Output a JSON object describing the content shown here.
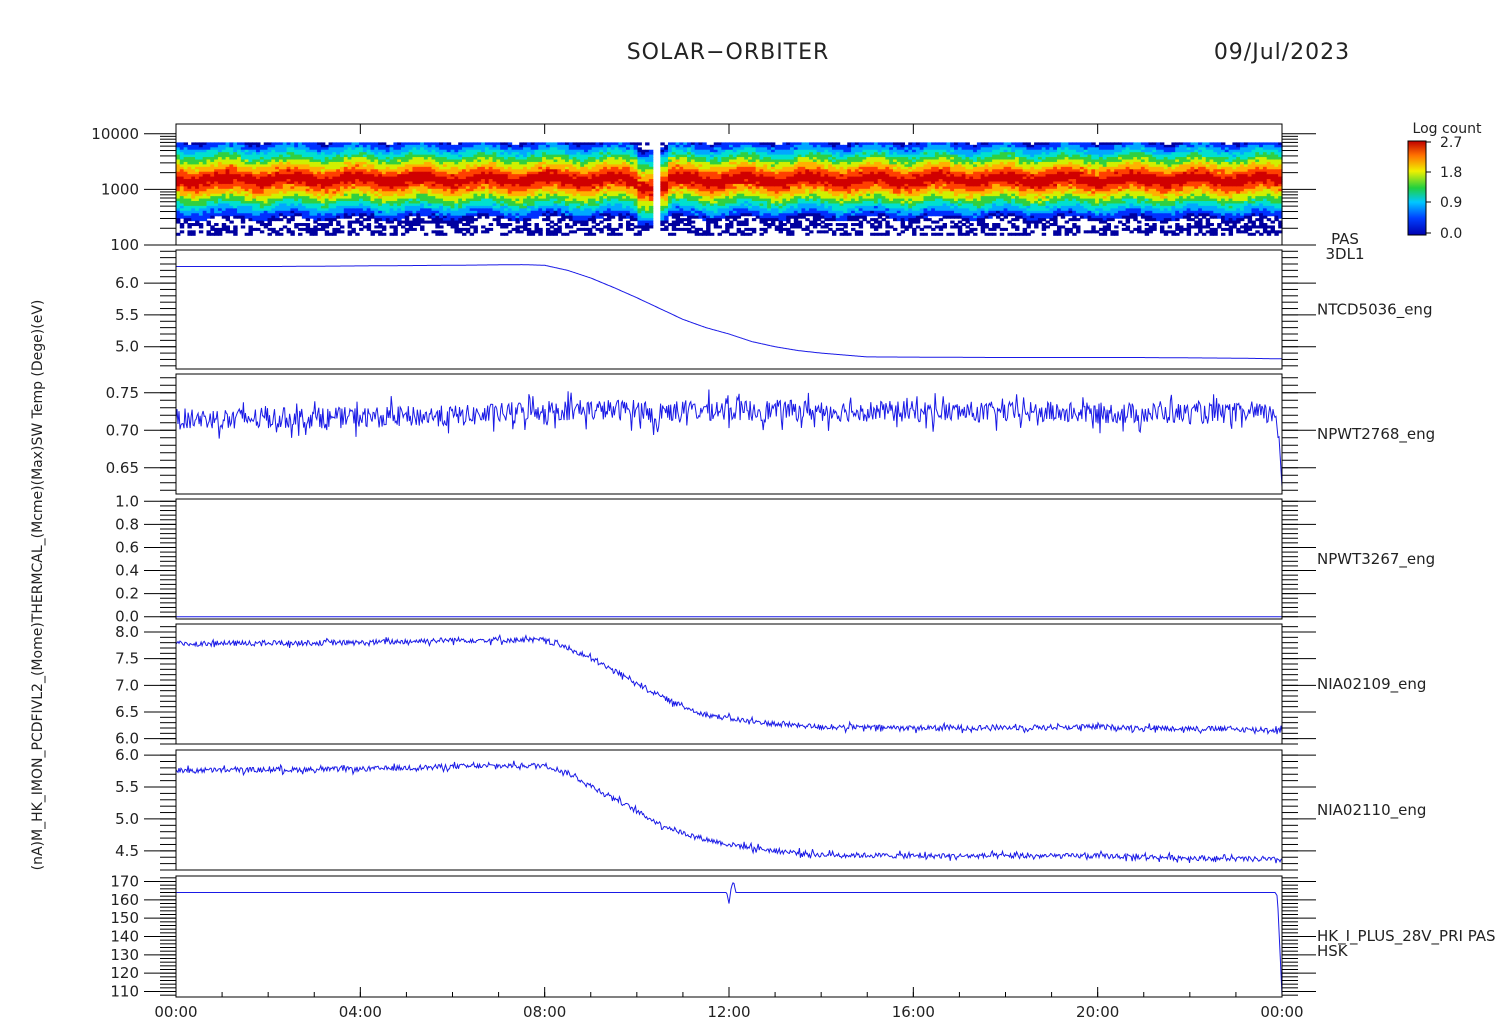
{
  "header": {
    "mission": "SOLAR−ORBITER",
    "date": "09/Jul/2023"
  },
  "y_axis_title": "(nA)M_HK_IMON_PCDFIVL2_(Mome)THERMCAL_(Mcme)(Max)SW Temp (Dege)(eV)",
  "colorbar": {
    "title": "Log count",
    "ticks": [
      "2.7",
      "1.8",
      "0.9",
      "0.0"
    ]
  },
  "colors": {
    "trace": "#1a1ae6",
    "panel_label": "#2a3aa8",
    "frame": "#000000"
  },
  "chart_data": [
    {
      "type": "heatmap",
      "panel_label": [
        "PAS",
        "3DL1"
      ],
      "x_start": "00:00",
      "x_end": "00:00",
      "x_tick_labels": [
        "00:00",
        "04:00",
        "08:00",
        "12:00",
        "16:00",
        "20:00",
        "00:00"
      ],
      "y_scale": "log",
      "ylim": [
        100,
        15000
      ],
      "y_tick_labels": [
        "10000",
        "1000",
        "100"
      ],
      "y_tick_values": [
        10000,
        1000,
        100
      ],
      "colorbar_range": [
        0.0,
        2.7
      ],
      "peak_energy_ev": 700,
      "gap_hours": [
        10.33,
        10.45
      ]
    },
    {
      "type": "line",
      "label": "NTCD5036_eng",
      "ylim": [
        4.65,
        6.52
      ],
      "y_tick_values": [
        6.0,
        5.5,
        5.0
      ],
      "y_tick_labels": [
        "6.0",
        "5.5",
        "5.0"
      ],
      "x_hours": [
        0,
        2,
        4,
        6,
        7.5,
        8.0,
        8.5,
        9.0,
        9.5,
        10.0,
        10.5,
        11.0,
        11.5,
        12.0,
        12.5,
        13.0,
        13.5,
        14.0,
        14.5,
        15.0,
        18.0,
        21.0,
        23.0,
        24.0
      ],
      "values": [
        6.26,
        6.26,
        6.27,
        6.28,
        6.29,
        6.28,
        6.2,
        6.08,
        5.93,
        5.77,
        5.6,
        5.43,
        5.3,
        5.2,
        5.08,
        5.0,
        4.94,
        4.9,
        4.87,
        4.84,
        4.83,
        4.83,
        4.82,
        4.81
      ],
      "noise": 0
    },
    {
      "type": "line",
      "label": "NPWT2768_eng",
      "ylim": [
        0.615,
        0.775
      ],
      "y_tick_values": [
        0.75,
        0.7,
        0.65
      ],
      "y_tick_labels": [
        "0.75",
        "0.70",
        "0.65"
      ],
      "x_hours": [
        0,
        4,
        6.5,
        8,
        10.3,
        10.35,
        10.45,
        10.5,
        12,
        16,
        20,
        23.6,
        23.9,
        24.0
      ],
      "values": [
        0.715,
        0.717,
        0.72,
        0.727,
        0.727,
        0.705,
        0.705,
        0.726,
        0.727,
        0.725,
        0.723,
        0.722,
        0.72,
        0.635
      ],
      "noise": 0.014
    },
    {
      "type": "line",
      "label": "NPWT3267_eng",
      "ylim": [
        -0.02,
        1.02
      ],
      "y_tick_values": [
        1.0,
        0.8,
        0.6,
        0.4,
        0.2,
        0.0
      ],
      "y_tick_labels": [
        "1.0",
        "0.8",
        "0.6",
        "0.4",
        "0.2",
        "0.0"
      ],
      "x_hours": [
        0,
        24
      ],
      "values": [
        0.0,
        0.0
      ],
      "noise": 0
    },
    {
      "type": "line",
      "label": "NIA02109_eng",
      "ylim": [
        5.9,
        8.15
      ],
      "y_tick_values": [
        8.0,
        7.5,
        7.0,
        6.5,
        6.0
      ],
      "y_tick_labels": [
        "8.0",
        "7.5",
        "7.0",
        "6.5",
        "6.0"
      ],
      "x_hours": [
        0,
        4,
        6,
        8,
        8.5,
        9,
        9.5,
        10,
        10.5,
        11,
        11.5,
        12,
        12.5,
        13,
        13.5,
        14,
        16,
        20,
        24
      ],
      "values": [
        7.78,
        7.8,
        7.85,
        7.85,
        7.7,
        7.5,
        7.28,
        7.05,
        6.8,
        6.6,
        6.45,
        6.38,
        6.32,
        6.28,
        6.25,
        6.22,
        6.2,
        6.22,
        6.16
      ],
      "noise": 0.05
    },
    {
      "type": "line",
      "label": "NIA02110_eng",
      "ylim": [
        4.2,
        6.08
      ],
      "y_tick_values": [
        6.0,
        5.5,
        5.0,
        4.5
      ],
      "y_tick_labels": [
        "6.0",
        "5.5",
        "5.0",
        "4.5"
      ],
      "x_hours": [
        0,
        4,
        6,
        8,
        8.5,
        9,
        9.5,
        10,
        10.5,
        11,
        11.5,
        12,
        12.5,
        13,
        14,
        16,
        20,
        24
      ],
      "values": [
        5.76,
        5.78,
        5.82,
        5.84,
        5.72,
        5.52,
        5.33,
        5.12,
        4.92,
        4.78,
        4.68,
        4.6,
        4.55,
        4.5,
        4.44,
        4.42,
        4.42,
        4.36
      ],
      "noise": 0.04
    },
    {
      "type": "line",
      "label": "HK_I_PLUS_28V_PRI PAS",
      "label2": "HSK",
      "ylim": [
        107,
        173
      ],
      "y_tick_values": [
        170,
        160,
        150,
        140,
        130,
        120,
        110
      ],
      "y_tick_labels": [
        "170",
        "160",
        "150",
        "140",
        "130",
        "120",
        "110"
      ],
      "x_hours": [
        0,
        11.95,
        12.0,
        12.05,
        12.1,
        12.15,
        12.2,
        23.85,
        23.9,
        24.0
      ],
      "values": [
        164,
        164,
        158,
        167,
        170,
        164,
        164,
        164,
        162,
        108
      ],
      "noise": 0
    }
  ]
}
